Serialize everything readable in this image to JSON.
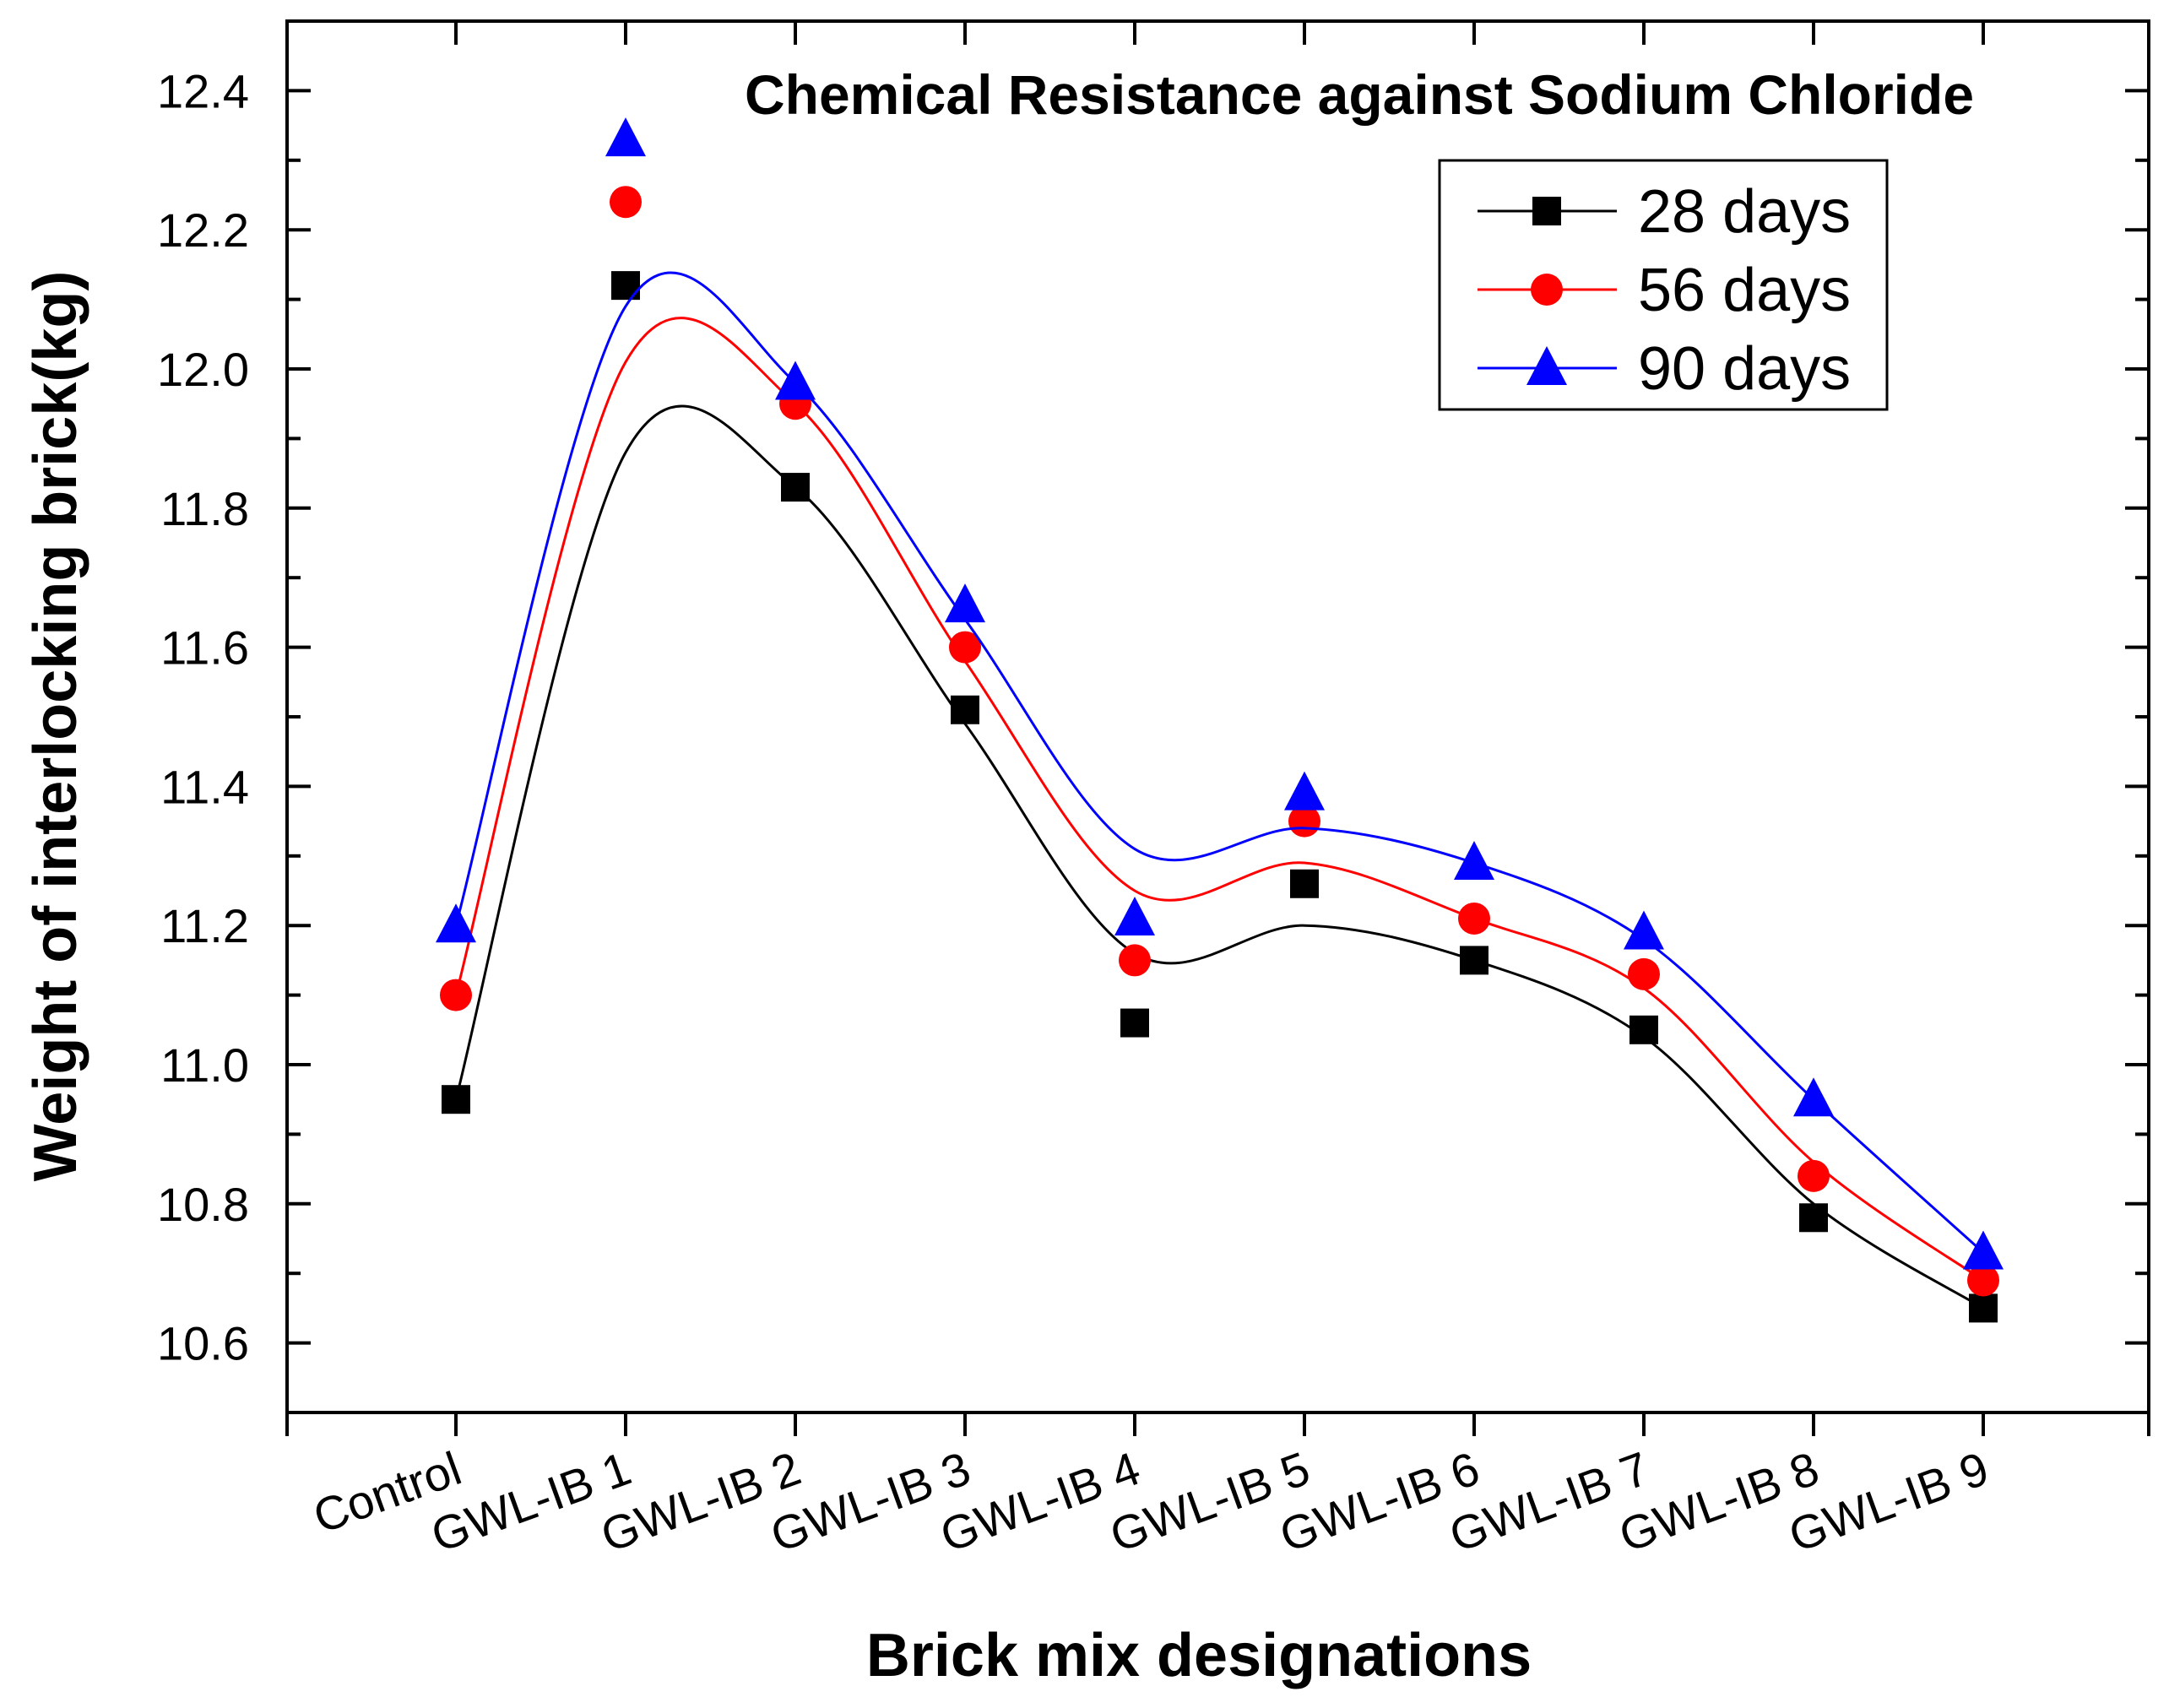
{
  "chart_data": {
    "type": "line",
    "title": "Chemical Resistance against Sodium Chloride",
    "xlabel": "Brick mix designations",
    "ylabel": "Weight of interlocking brick(kg)",
    "categories": [
      "Control",
      "GWL-IB 1",
      "GWL-IB 2",
      "GWL-IB 3",
      "GWL-IB 4",
      "GWL-IB 5",
      "GWL-IB 6",
      "GWL-IB 7",
      "GWL-IB 8",
      "GWL-IB 9"
    ],
    "ylim": [
      10.5,
      12.5
    ],
    "yticks": [
      "10.6",
      "10.8",
      "11.0",
      "11.2",
      "11.4",
      "11.6",
      "11.8",
      "12.0",
      "12.2",
      "12.4"
    ],
    "grid": false,
    "legend_position": "top-right",
    "series": [
      {
        "name": "28 days",
        "marker": "square",
        "color": "#000000",
        "values": [
          10.95,
          12.12,
          11.83,
          11.51,
          11.06,
          11.26,
          11.15,
          11.05,
          10.78,
          10.65
        ],
        "curve": [
          10.95,
          11.88,
          11.83,
          11.49,
          11.16,
          11.2,
          11.15,
          11.04,
          10.8,
          10.65
        ]
      },
      {
        "name": "56 days",
        "marker": "circle",
        "color": "#ff0000",
        "values": [
          11.1,
          12.24,
          11.95,
          11.6,
          11.15,
          11.35,
          11.21,
          11.13,
          10.84,
          10.69
        ],
        "curve": [
          11.1,
          12.01,
          11.95,
          11.58,
          11.25,
          11.29,
          11.21,
          11.11,
          10.86,
          10.69
        ]
      },
      {
        "name": "90 days",
        "marker": "triangle",
        "color": "#0000ff",
        "values": [
          11.2,
          12.33,
          11.98,
          11.66,
          11.21,
          11.39,
          11.29,
          11.19,
          10.95,
          10.73
        ],
        "curve": [
          11.2,
          12.09,
          11.98,
          11.64,
          11.31,
          11.34,
          11.29,
          11.18,
          10.95,
          10.73
        ]
      }
    ]
  }
}
